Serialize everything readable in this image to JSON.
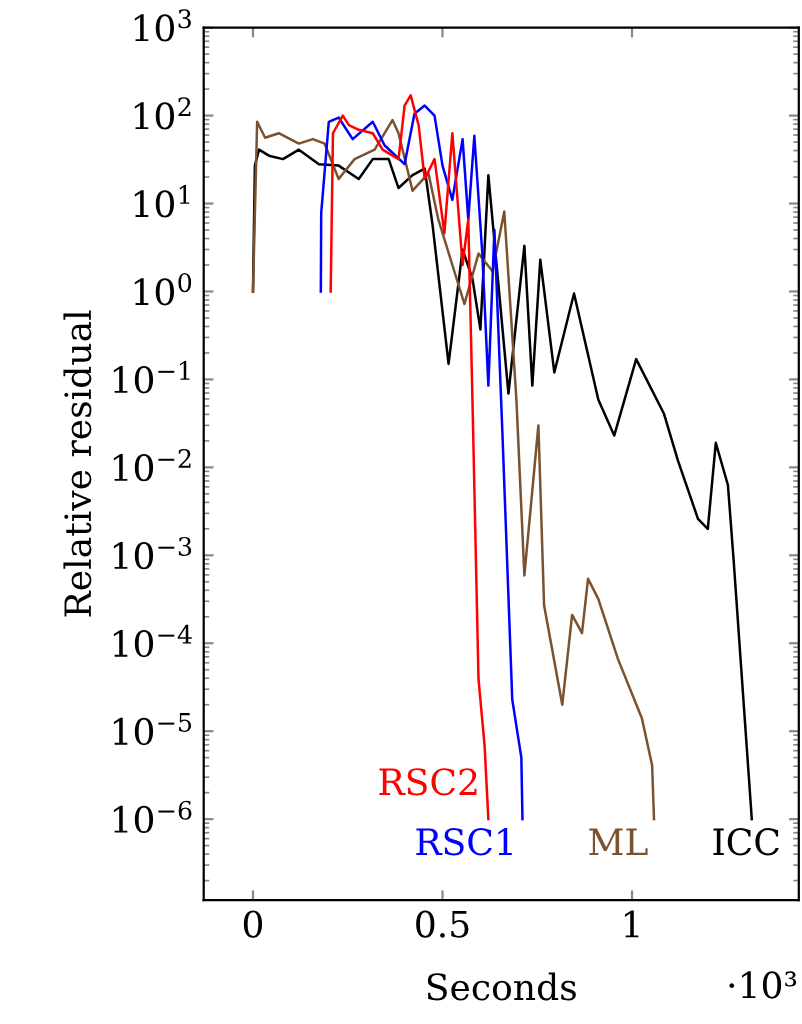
{
  "chart_data": {
    "type": "line",
    "xlabel": "Seconds",
    "ylabel": "Relative residual",
    "log": "y",
    "xlim": [
      -0.13,
      1.44
    ],
    "ylim": [
      1.2e-07,
      1000
    ],
    "xticks": [
      0,
      0.5,
      1
    ],
    "yticks": [
      {
        "value": 1e-06,
        "label": "10$^{−6}$"
      },
      {
        "value": 1e-05,
        "label": "10$^{−5}$"
      },
      {
        "value": 0.0001,
        "label": "10$^{−4}$"
      },
      {
        "value": 0.001,
        "label": "10$^{−3}$"
      },
      {
        "value": 0.01,
        "label": "10$^{−2}$"
      },
      {
        "value": 0.1,
        "label": "10$^{−1}$"
      },
      {
        "value": 1,
        "label": "10$^{0}$"
      },
      {
        "value": 10,
        "label": "10$^{1}$"
      },
      {
        "value": 100,
        "label": "10$^{2}$"
      },
      {
        "value": 1000,
        "label": "10$^{3}$"
      }
    ],
    "annotations": [
      "·10³"
    ],
    "grid": false,
    "legend": false,
    "line_style": "solid",
    "series": [
      {
        "name": "ICC",
        "color": "#000000",
        "x": [
          0,
          0.005,
          0.016,
          0.042,
          0.079,
          0.121,
          0.174,
          0.226,
          0.279,
          0.316,
          0.358,
          0.384,
          0.421,
          0.453,
          0.474,
          0.516,
          0.553,
          0.579,
          0.6,
          0.621,
          0.674,
          0.716,
          0.737,
          0.758,
          0.795,
          0.847,
          0.911,
          0.953,
          1.011,
          1.084,
          1.121,
          1.174,
          1.2,
          1.221,
          1.253,
          1.268,
          1.316
        ],
        "values": [
          1,
          27,
          41,
          35,
          32,
          41,
          28,
          27,
          19,
          32,
          32,
          15,
          21,
          25,
          5.6,
          0.15,
          3.0,
          1.4,
          0.37,
          21,
          0.069,
          3.3,
          0.085,
          2.3,
          0.12,
          0.95,
          0.059,
          0.023,
          0.17,
          0.041,
          0.012,
          0.0026,
          0.002,
          0.019,
          0.0063,
          0.00089,
          1e-06
        ]
      },
      {
        "name": "ML",
        "color": "#7a5230",
        "x": [
          0,
          0.011,
          0.032,
          0.068,
          0.121,
          0.158,
          0.189,
          0.226,
          0.268,
          0.321,
          0.368,
          0.384,
          0.421,
          0.463,
          0.489,
          0.526,
          0.558,
          0.595,
          0.632,
          0.663,
          0.695,
          0.716,
          0.753,
          0.768,
          0.816,
          0.842,
          0.868,
          0.884,
          0.911,
          0.963,
          1.026,
          1.053,
          1.058
        ],
        "values": [
          1,
          85,
          56,
          63,
          48,
          54,
          48,
          19,
          32,
          41,
          89,
          63,
          14,
          22,
          6.6,
          2,
          0.72,
          2.7,
          1.7,
          8.1,
          0.059,
          0.00059,
          0.03,
          0.00027,
          2e-05,
          0.00021,
          0.00013,
          0.00054,
          0.00032,
          6.6e-05,
          1.4e-05,
          4.1e-06,
          1e-06
        ]
      },
      {
        "name": "RSC1",
        "color": "#0000ff",
        "x": [
          0.179,
          0.18,
          0.2,
          0.226,
          0.263,
          0.316,
          0.347,
          0.4,
          0.426,
          0.453,
          0.479,
          0.5,
          0.526,
          0.553,
          0.568,
          0.584,
          0.605,
          0.621,
          0.637,
          0.658,
          0.684,
          0.708,
          0.711
        ],
        "values": [
          1,
          7.8,
          85,
          95,
          54,
          85,
          46,
          28,
          105,
          130,
          100,
          27,
          11,
          54,
          6.6,
          59,
          2.7,
          0.085,
          5,
          0.025,
          2.3e-05,
          5e-06,
          1e-06
        ]
      },
      {
        "name": "RSC2",
        "color": "#ff0000",
        "x": [
          0.205,
          0.211,
          0.237,
          0.253,
          0.279,
          0.316,
          0.342,
          0.384,
          0.4,
          0.416,
          0.437,
          0.453,
          0.479,
          0.505,
          0.526,
          0.553,
          0.568,
          0.579,
          0.595,
          0.611,
          0.621
        ],
        "values": [
          1,
          63,
          100,
          78,
          69,
          63,
          41,
          32,
          130,
          170,
          78,
          19,
          32,
          4.6,
          63,
          2,
          6.6,
          0.059,
          3.9e-05,
          6.9e-06,
          1e-06
        ]
      }
    ]
  }
}
